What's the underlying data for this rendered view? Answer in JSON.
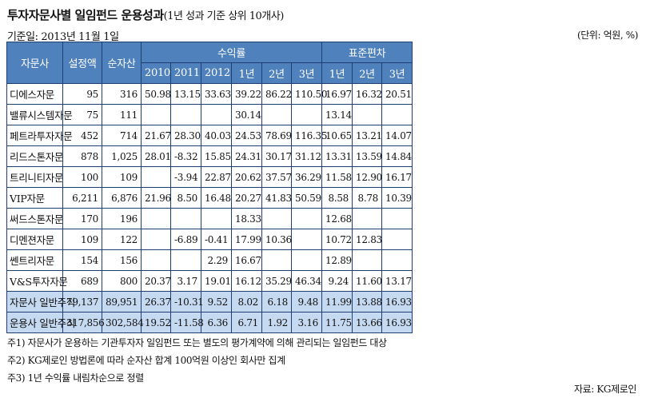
{
  "title": {
    "main": "투자자문사별 일임펀드 운용성과",
    "sub": "(1년 성과 기준 상위 10개사)"
  },
  "base_date": "기준일: 2013년 11월 1일",
  "unit": "(단위: 억원, %)",
  "header": {
    "advisor": "자문사",
    "set_amount": "설정액",
    "net_assets": "순자산",
    "returns": "수익률",
    "stdev": "표준편차",
    "return_cols": [
      "2010",
      "2011",
      "2012",
      "1년",
      "2년",
      "3년"
    ],
    "stdev_cols": [
      "1년",
      "2년",
      "3년"
    ]
  },
  "rows": [
    [
      "디에스자문",
      "95",
      "316",
      "50.98",
      "13.15",
      "33.63",
      "39.22",
      "86.22",
      "110.50",
      "16.97",
      "16.32",
      "20.51"
    ],
    [
      "밸류시스템자문",
      "75",
      "111",
      "",
      "",
      "",
      "30.14",
      "",
      "",
      "13.14",
      "",
      ""
    ],
    [
      "페트라투자자문",
      "452",
      "714",
      "21.67",
      "28.30",
      "40.03",
      "24.53",
      "78.69",
      "116.35",
      "10.65",
      "13.21",
      "14.07"
    ],
    [
      "리드스톤자문",
      "878",
      "1,025",
      "28.01",
      "-8.32",
      "15.85",
      "24.31",
      "30.17",
      "31.12",
      "13.31",
      "13.59",
      "14.84"
    ],
    [
      "트리니티자문",
      "100",
      "109",
      "",
      "-3.94",
      "22.87",
      "20.62",
      "37.57",
      "36.29",
      "11.58",
      "12.90",
      "16.17"
    ],
    [
      "VIP자문",
      "6,211",
      "6,876",
      "21.96",
      "8.50",
      "16.48",
      "20.27",
      "41.83",
      "50.59",
      "8.58",
      "8.78",
      "10.39"
    ],
    [
      "써드스톤자문",
      "170",
      "196",
      "",
      "",
      "",
      "18.33",
      "",
      "",
      "12.68",
      "",
      ""
    ],
    [
      "디멘젼자문",
      "109",
      "122",
      "",
      "-6.89",
      "-0.41",
      "17.99",
      "10.36",
      "",
      "10.72",
      "12.83",
      ""
    ],
    [
      "쎈트리자문",
      "154",
      "156",
      "",
      "",
      "2.29",
      "16.67",
      "",
      "",
      "12.89",
      "",
      ""
    ],
    [
      "V&S투자자문",
      "689",
      "800",
      "20.37",
      "3.17",
      "19.01",
      "16.12",
      "35.29",
      "46.34",
      "9.24",
      "11.60",
      "13.17"
    ]
  ],
  "summary_rows": [
    [
      "자문사 일반주식",
      "79,137",
      "89,951",
      "26.37",
      "-10.31",
      "9.52",
      "8.02",
      "6.18",
      "9.48",
      "11.99",
      "13.88",
      "16.93"
    ],
    [
      "운용사 일반주식",
      "317,856",
      "302,584",
      "19.52",
      "-11.58",
      "6.36",
      "6.71",
      "1.92",
      "3.16",
      "11.75",
      "13.66",
      "16.93"
    ]
  ],
  "notes": [
    "주1) 자문사가 운용하는 기관투자자 일임펀드 또는 별도의 평가계약에 의해 관리되는 일임펀드 대상",
    "주2) KG제로인 방법론에 따라 순자산 합계 100억원 이상인 회사만 집계",
    "주3) 1년 수익률 내림차순으로 정렬"
  ],
  "source": "자료: KG제로인",
  "colors": {
    "header_bg": "#4f81bd",
    "summary_bg": "#c5d9f1",
    "border": "#1f3f73"
  }
}
